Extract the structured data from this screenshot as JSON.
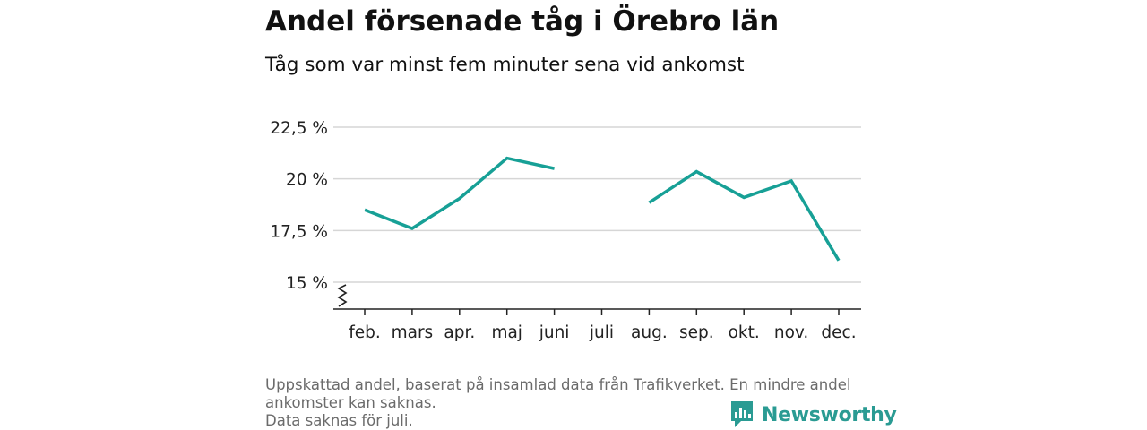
{
  "chart_data": {
    "type": "line",
    "title": "Andel försenade tåg i Örebro län",
    "subtitle": "Tåg som var minst fem minuter sena vid ankomst",
    "categories": [
      "feb.",
      "mars",
      "apr.",
      "maj",
      "juni",
      "juli",
      "aug.",
      "sep.",
      "okt.",
      "nov.",
      "dec."
    ],
    "series": [
      {
        "values": [
          18.5,
          17.6,
          19.05,
          21.0,
          20.5,
          null,
          18.85,
          20.35,
          19.1,
          19.9,
          16.05
        ]
      }
    ],
    "yticks": [
      15,
      17.5,
      20,
      22.5
    ],
    "ytick_labels": [
      "15 %",
      "17,5 %",
      "20 %",
      "22,5 %"
    ],
    "ylim": [
      13.8,
      22.5
    ],
    "y_axis_break": true,
    "grid": true,
    "line_color": "#17a096"
  },
  "footnote": {
    "line1": "Uppskattad andel, baserat på insamlad data från Trafikverket. En mindre andel",
    "line2": "ankomster kan saknas.",
    "line3": "Data saknas för juli."
  },
  "brand": {
    "name": "Newsworthy",
    "logo_icon": "bar-chart-badge-icon",
    "color": "#2a9b93"
  }
}
